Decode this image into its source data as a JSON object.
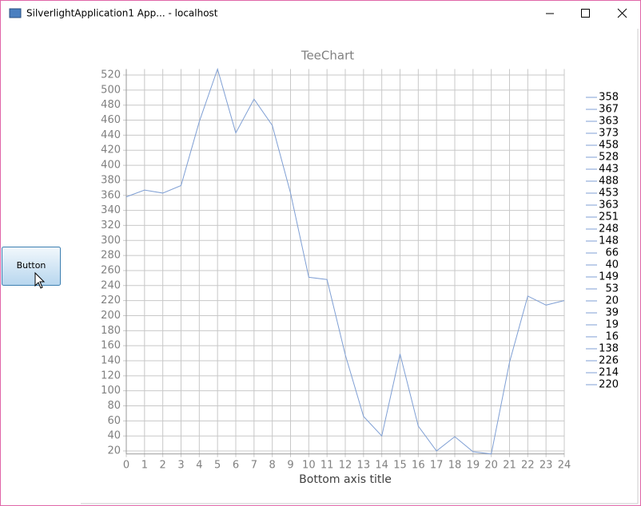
{
  "window": {
    "title": "SilverlightApplication1 App... - localhost"
  },
  "button": {
    "label": "Button"
  },
  "chart_data": {
    "type": "line",
    "title": "TeeChart",
    "x_label": "Bottom axis title",
    "x": [
      0,
      1,
      2,
      3,
      4,
      5,
      6,
      7,
      8,
      9,
      10,
      11,
      12,
      13,
      14,
      15,
      16,
      17,
      18,
      19,
      20,
      21,
      22,
      23,
      24
    ],
    "values": [
      358,
      367,
      363,
      373,
      458,
      528,
      443,
      488,
      453,
      363,
      251,
      248,
      148,
      66,
      40,
      149,
      53,
      20,
      39,
      19,
      16,
      138,
      226,
      214,
      220
    ],
    "color": "#7f9fd4",
    "xlim": [
      0,
      24
    ],
    "xticks": [
      0,
      1,
      2,
      3,
      4,
      5,
      6,
      7,
      8,
      9,
      10,
      11,
      12,
      13,
      14,
      15,
      16,
      17,
      18,
      19,
      20,
      21,
      22,
      23,
      24
    ],
    "ylim": [
      16,
      528
    ],
    "yticks": [
      20,
      40,
      60,
      80,
      100,
      120,
      140,
      160,
      180,
      200,
      220,
      240,
      260,
      280,
      300,
      320,
      340,
      360,
      380,
      400,
      420,
      440,
      460,
      480,
      500,
      520
    ],
    "grid": true,
    "legend": "right"
  }
}
